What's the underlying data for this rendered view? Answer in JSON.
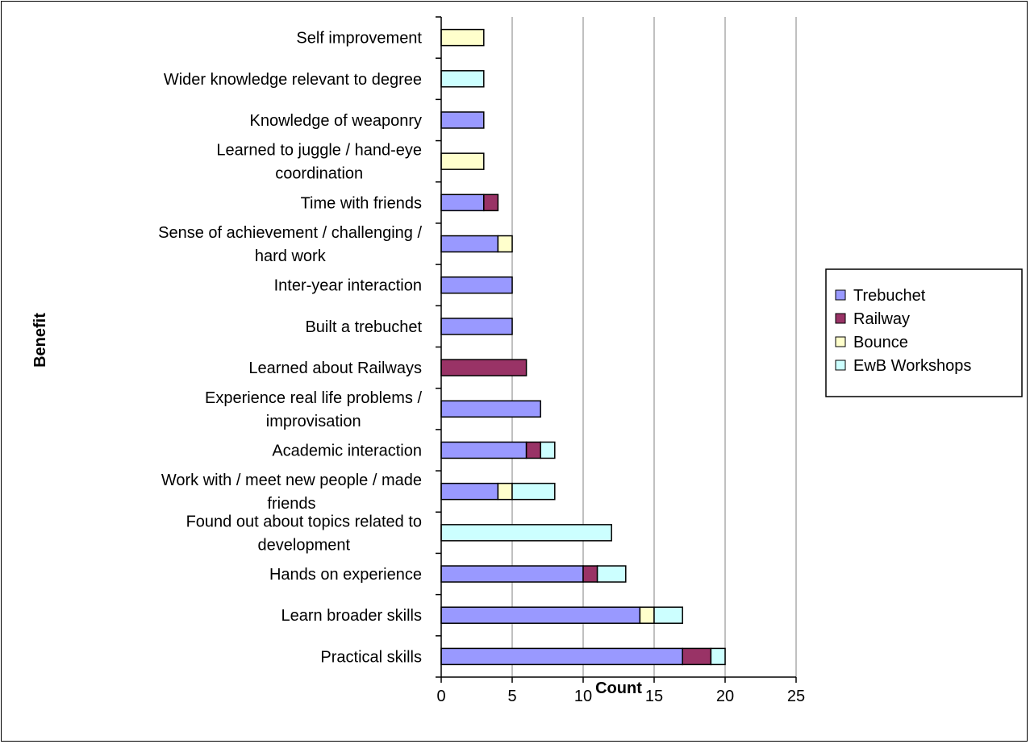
{
  "chart_data": {
    "type": "bar",
    "orientation": "horizontal",
    "stacked": true,
    "categories": [
      "Practical skills",
      "Learn broader skills",
      "Hands on experience",
      "Found out about topics related to development",
      "Work with / meet new people / made friends",
      "Academic interaction",
      "Experience real life problems / improvisation",
      "Learned about Railways",
      "Built a trebuchet",
      "Inter-year interaction",
      "Sense of achievement / challenging / hard work",
      "Time with friends",
      "Learned to juggle / hand-eye coordination",
      "Knowledge of weaponry",
      "Wider knowledge relevant to degree",
      "Self improvement"
    ],
    "category_label_lines": [
      [
        "Practical skills"
      ],
      [
        "Learn broader skills"
      ],
      [
        "Hands on experience"
      ],
      [
        "Found out about topics related to",
        "development"
      ],
      [
        "Work with / meet new people / made",
        "friends"
      ],
      [
        "Academic interaction"
      ],
      [
        "Experience real life problems /",
        "improvisation"
      ],
      [
        "Learned about Railways"
      ],
      [
        "Built a trebuchet"
      ],
      [
        "Inter-year interaction"
      ],
      [
        "Sense of achievement / challenging /",
        "hard work"
      ],
      [
        "Time with friends"
      ],
      [
        "Learned to juggle / hand-eye",
        "coordination"
      ],
      [
        "Knowledge of weaponry"
      ],
      [
        "Wider knowledge relevant to degree"
      ],
      [
        "Self improvement"
      ]
    ],
    "series": [
      {
        "name": "Trebuchet",
        "color": "#9999ff",
        "values": [
          17,
          14,
          10,
          0,
          4,
          6,
          7,
          0,
          5,
          5,
          4,
          3,
          0,
          3,
          0,
          0
        ]
      },
      {
        "name": "Railway",
        "color": "#993366",
        "values": [
          2,
          0,
          1,
          0,
          0,
          1,
          0,
          6,
          0,
          0,
          0,
          1,
          0,
          0,
          0,
          0
        ]
      },
      {
        "name": "Bounce",
        "color": "#ffffcc",
        "values": [
          0,
          1,
          0,
          0,
          1,
          0,
          0,
          0,
          0,
          0,
          1,
          0,
          3,
          0,
          0,
          3
        ]
      },
      {
        "name": "EwB Workshops",
        "color": "#ccffff",
        "values": [
          1,
          2,
          2,
          12,
          3,
          1,
          0,
          0,
          0,
          0,
          0,
          0,
          0,
          0,
          3,
          0
        ]
      }
    ],
    "xlabel": "Count",
    "ylabel": "Benefit",
    "xlim": [
      0,
      25
    ],
    "xticks": [
      0,
      5,
      10,
      15,
      20,
      25
    ],
    "grid": "vertical",
    "grid_color": "#c0c0c0",
    "legend_position": "right"
  }
}
